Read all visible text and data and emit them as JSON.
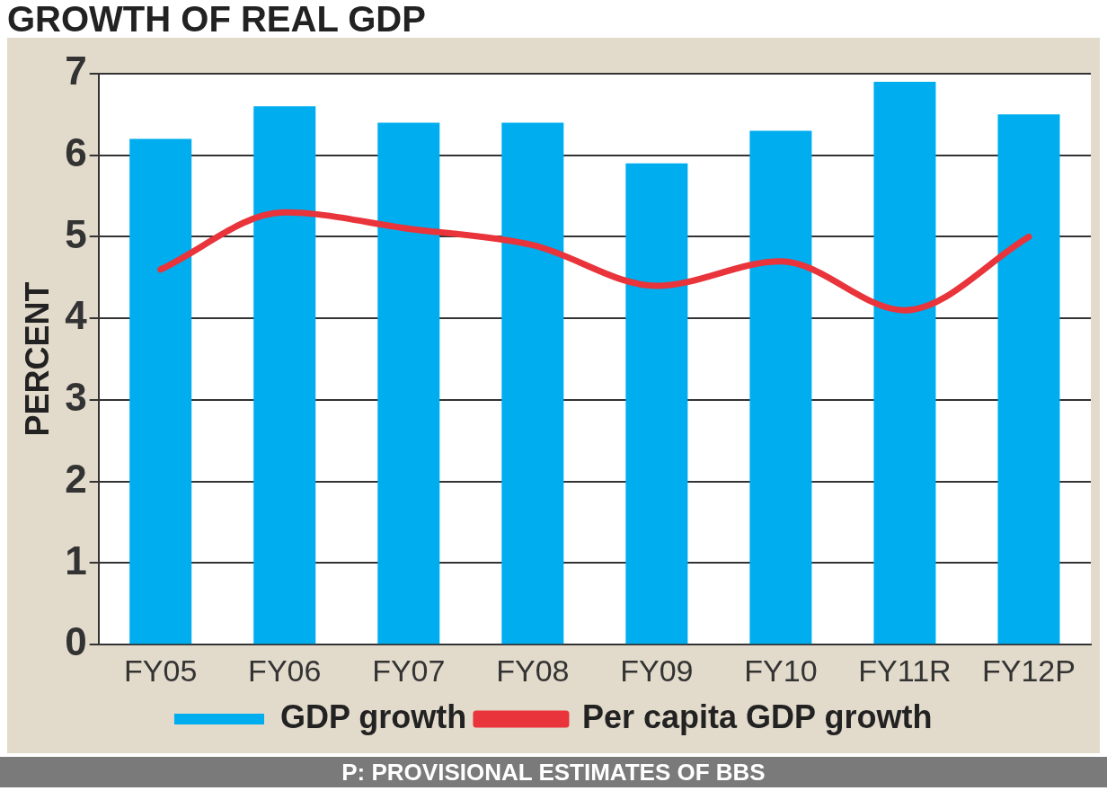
{
  "chart_data": {
    "type": "bar",
    "title": "GROWTH OF REAL GDP",
    "ylabel": "PERCENT",
    "categories": [
      "FY05",
      "FY06",
      "FY07",
      "FY08",
      "FY09",
      "FY10",
      "FY11R",
      "FY12P"
    ],
    "series": [
      {
        "name": "GDP growth",
        "color": "#00aeef",
        "values": [
          6.2,
          6.6,
          6.4,
          6.4,
          5.9,
          6.3,
          6.9,
          6.5
        ]
      },
      {
        "name": "Per capita GDP growth",
        "type": "line",
        "color": "#e8343a",
        "values": [
          4.6,
          5.3,
          5.1,
          4.9,
          4.4,
          4.7,
          4.1,
          5.0
        ]
      }
    ],
    "ylim": [
      0,
      7
    ],
    "yticks": [
      0,
      1,
      2,
      3,
      4,
      5,
      6,
      7
    ],
    "grid": "y",
    "legend": "bottom",
    "marker": "none",
    "annotations": [
      "P: PROVISIONAL ESTIMATES OF BBS"
    ]
  }
}
